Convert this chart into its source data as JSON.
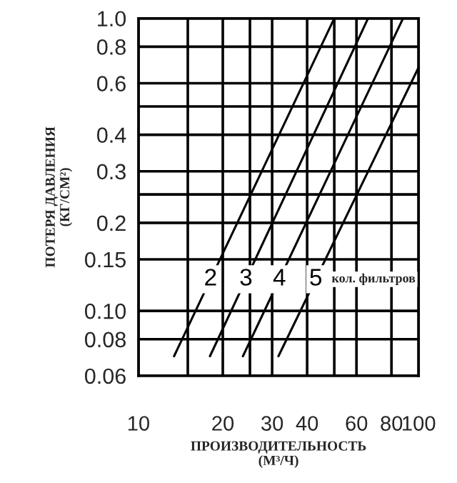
{
  "chart_data": {
    "type": "line",
    "xlabel": "ПРОИЗВОДИТЕЛЬНОСТЬ\n(М³/Ч)",
    "ylabel": "ПОТЕРЯ ДАВЛЕНИЯ\n(КГ/СМ²)",
    "log": "xy",
    "xlim": [
      10,
      100
    ],
    "ylim": [
      0.06,
      1.0
    ],
    "xticks": [
      10,
      {
        "value": 15,
        "label": null
      },
      20,
      {
        "value": 25,
        "label": null
      },
      30,
      40,
      {
        "value": 50,
        "label": null
      },
      60,
      80,
      100
    ],
    "yticks": [
      0.06,
      0.08,
      {
        "value": 0.1,
        "label": "0.10"
      },
      0.15,
      0.2,
      {
        "value": 0.25,
        "label": null
      },
      0.3,
      0.4,
      {
        "value": 0.5,
        "label": null
      },
      0.6,
      0.8,
      {
        "value": 1.0,
        "label": "1.0"
      }
    ],
    "grid": true,
    "marker": "none",
    "line_style": "solid",
    "series": [
      {
        "name": "2",
        "color": "#000000",
        "x": [
          13.4,
          50
        ],
        "values": [
          0.07,
          1.0
        ]
      },
      {
        "name": "3",
        "color": "#000000",
        "x": [
          18,
          66
        ],
        "values": [
          0.07,
          1.0
        ]
      },
      {
        "name": "4",
        "color": "#000000",
        "x": [
          23.6,
          88
        ],
        "values": [
          0.07,
          1.0
        ]
      },
      {
        "name": "5",
        "color": "#000000",
        "x": [
          31.6,
          100
        ],
        "values": [
          0.07,
          0.68
        ]
      }
    ],
    "annotations": [
      "кол. фильтров"
    ]
  }
}
